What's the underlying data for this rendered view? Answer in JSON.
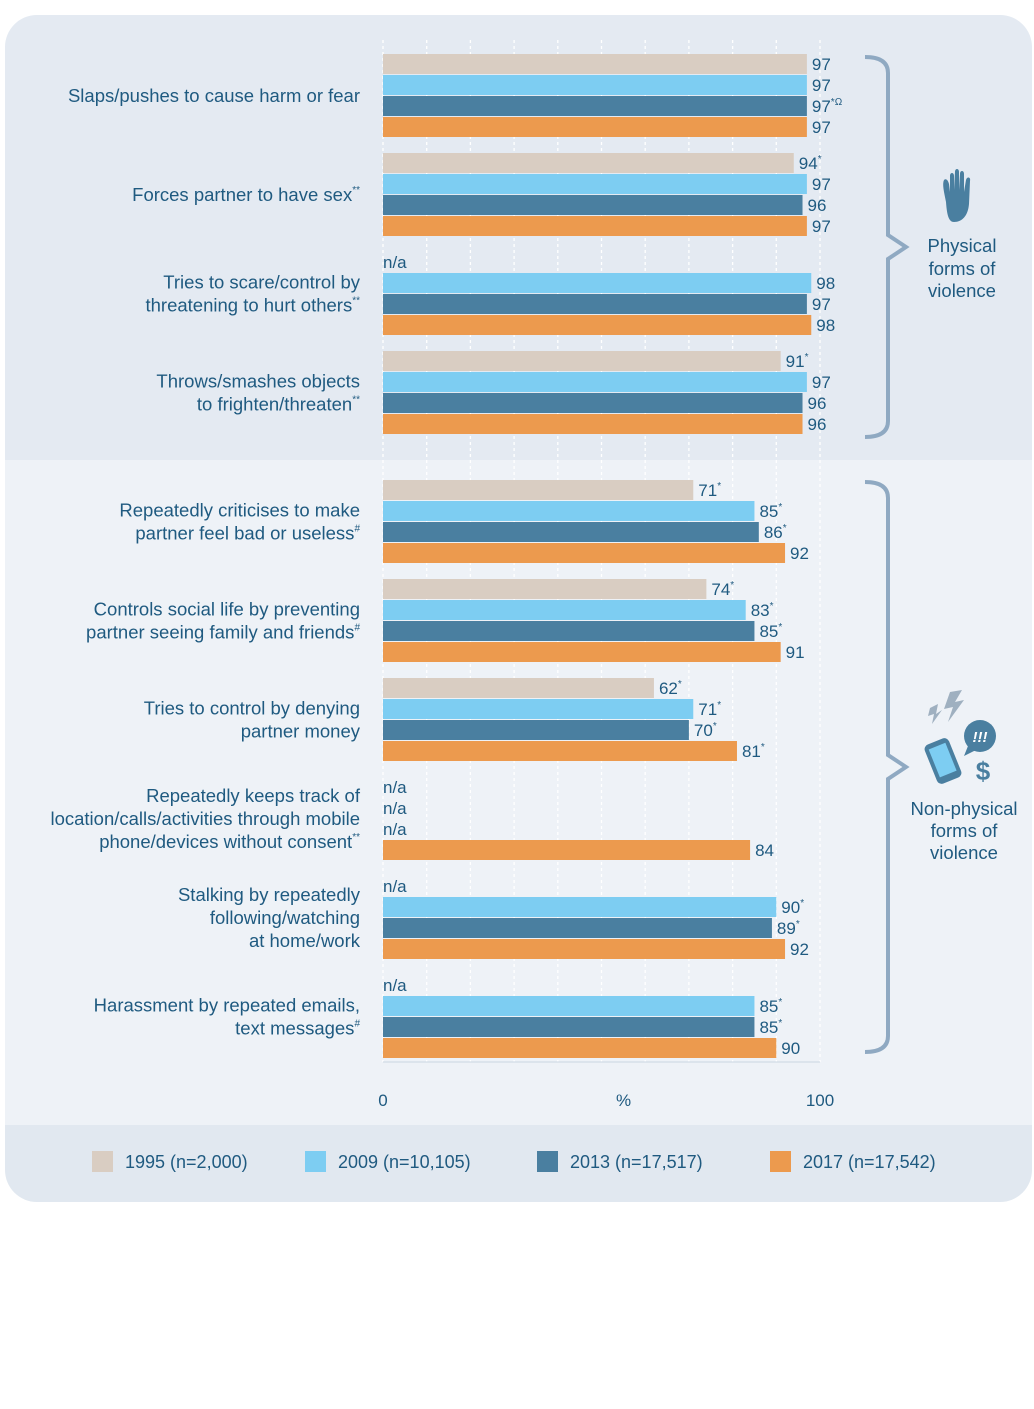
{
  "chart_data": {
    "type": "bar",
    "orientation": "horizontal",
    "xlim": [
      0,
      100
    ],
    "x_ticks": [
      "0",
      "%",
      "100"
    ],
    "grid": true,
    "legend_position": "bottom",
    "series": [
      {
        "name": "1995 (n=2,000)",
        "color": "#d9cdc2"
      },
      {
        "name": "2009 (n=10,105)",
        "color": "#7dcdf2"
      },
      {
        "name": "2013 (n=17,517)",
        "color": "#4a7fa0"
      },
      {
        "name": "2017 (n=17,542)",
        "color": "#ec9a4e"
      }
    ],
    "groups": [
      {
        "label_lines": [
          "Physical",
          "forms of",
          "violence"
        ],
        "icon": "raised-hand-icon",
        "categories": [
          {
            "label_lines": [
              "Slaps/pushes to cause harm or fear"
            ],
            "label_sup": "",
            "values": [
              97,
              97,
              97,
              97
            ],
            "value_labels": [
              "97",
              "97",
              "97",
              "97"
            ],
            "value_sups": [
              "",
              "",
              "*Ω",
              ""
            ]
          },
          {
            "label_lines": [
              "Forces partner to have sex"
            ],
            "label_sup": "**",
            "values": [
              94,
              97,
              96,
              97
            ],
            "value_labels": [
              "94",
              "97",
              "96",
              "97"
            ],
            "value_sups": [
              "*",
              "",
              "",
              ""
            ]
          },
          {
            "label_lines": [
              "Tries to scare/control by",
              "threatening to hurt others"
            ],
            "label_sup": "**",
            "values": [
              null,
              98,
              97,
              98
            ],
            "value_labels": [
              "n/a",
              "98",
              "97",
              "98"
            ],
            "value_sups": [
              "",
              "",
              "",
              ""
            ]
          },
          {
            "label_lines": [
              "Throws/smashes objects",
              "to frighten/threaten"
            ],
            "label_sup": "**",
            "values": [
              91,
              97,
              96,
              96
            ],
            "value_labels": [
              "91",
              "97",
              "96",
              "96"
            ],
            "value_sups": [
              "*",
              "",
              "",
              ""
            ]
          }
        ]
      },
      {
        "label_lines": [
          "Non-physical",
          "forms of",
          "violence"
        ],
        "icon": "phone-alert-icon",
        "categories": [
          {
            "label_lines": [
              "Repeatedly criticises to make",
              "partner feel bad or useless"
            ],
            "label_sup": "#",
            "values": [
              71,
              85,
              86,
              92
            ],
            "value_labels": [
              "71",
              "85",
              "86",
              "92"
            ],
            "value_sups": [
              "*",
              "*",
              "*",
              ""
            ]
          },
          {
            "label_lines": [
              "Controls social life by preventing",
              "partner seeing family and friends"
            ],
            "label_sup": "#",
            "values": [
              74,
              83,
              85,
              91
            ],
            "value_labels": [
              "74",
              "83",
              "85",
              "91"
            ],
            "value_sups": [
              "*",
              "*",
              "*",
              ""
            ]
          },
          {
            "label_lines": [
              "Tries to control by denying",
              "partner money"
            ],
            "label_sup": "",
            "values": [
              62,
              71,
              70,
              81
            ],
            "value_labels": [
              "62",
              "71",
              "70",
              "81"
            ],
            "value_sups": [
              "*",
              "*",
              "*",
              "*"
            ]
          },
          {
            "label_lines": [
              "Repeatedly keeps track of",
              "location/calls/activities through mobile",
              "phone/devices without consent"
            ],
            "label_sup": "**",
            "values": [
              null,
              null,
              null,
              84
            ],
            "value_labels": [
              "n/a",
              "n/a",
              "n/a",
              "84"
            ],
            "value_sups": [
              "",
              "",
              "",
              ""
            ]
          },
          {
            "label_lines": [
              "Stalking by repeatedly",
              "following/watching",
              "at home/work"
            ],
            "label_sup": "",
            "values": [
              null,
              90,
              89,
              92
            ],
            "value_labels": [
              "n/a",
              "90",
              "89",
              "92"
            ],
            "value_sups": [
              "",
              "*",
              "*",
              ""
            ]
          },
          {
            "label_lines": [
              "Harassment by repeated emails,",
              "text messages"
            ],
            "label_sup": "#",
            "values": [
              null,
              85,
              85,
              90
            ],
            "value_labels": [
              "n/a",
              "85",
              "85",
              "90"
            ],
            "value_sups": [
              "",
              "*",
              "*",
              ""
            ]
          }
        ]
      }
    ]
  },
  "colors": {
    "panel_top": "#e4eaf2",
    "panel_bottom": "#eef2f7",
    "legend_band": "#e1e8f0",
    "bracket": "#8fa9c2",
    "text": "#1f5a80"
  }
}
